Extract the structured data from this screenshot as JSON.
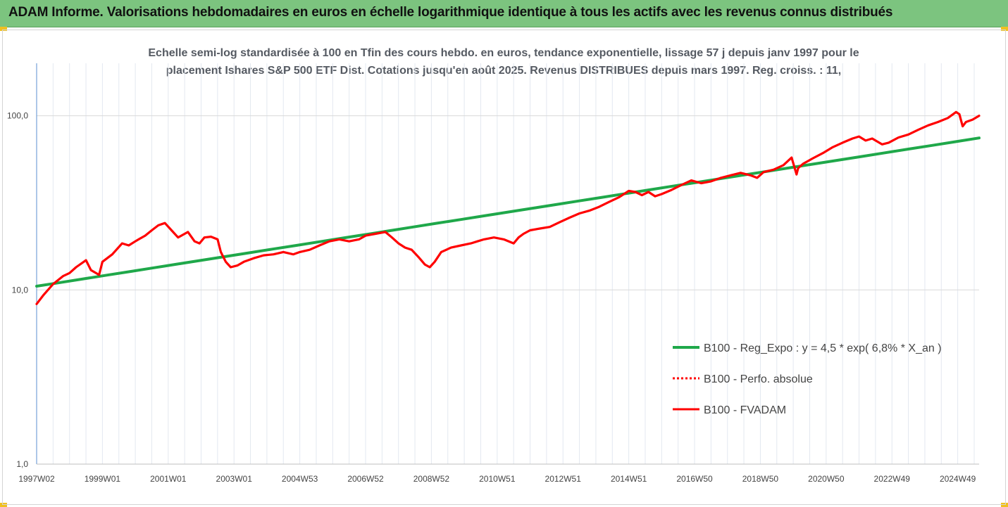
{
  "banner": {
    "title": "ADAM Informe. Valorisations hebdomadaires en euros en échelle logarithmique identique à tous les actifs avec les revenus connus distribués",
    "color": "#7cc47f"
  },
  "chart_data": {
    "type": "line",
    "title": "Echelle semi-log standardisée à 100 en Tfin des cours hebdo. en euros, tendance exponentielle, lissage 57 j depuis janv 1997 pour le placement Ishares S&P 500 ETF Dist. Cotations jusqu'en août 2025.  Revenus DISTRIBUES depuis mars 1997. Reg. croiss. : 11,",
    "title_line1": "Echelle semi-log standardisée à 100 en Tfin des cours hebdo. en euros, tendance exponentielle, lissage 57 j depuis janv 1997 pour le",
    "title_line2": "placement Ishares S&P 500 ETF Dist. Cotations jusqu'en août 2025.  Revenus DISTRIBUES depuis mars 1997. Reg. croiss. : 11,",
    "y_scale": "log",
    "ylim": [
      1,
      200
    ],
    "xlim": [
      1997.0,
      2025.65
    ],
    "y_ticks": [
      {
        "value": 1,
        "label": "1,0"
      },
      {
        "value": 10,
        "label": "10,0"
      },
      {
        "value": 100,
        "label": "100,0"
      }
    ],
    "x_ticks": [
      {
        "value": 1997.0,
        "label": "1997W02"
      },
      {
        "value": 1999.0,
        "label": "1999W01"
      },
      {
        "value": 2001.0,
        "label": "2001W01"
      },
      {
        "value": 2003.0,
        "label": "2003W01"
      },
      {
        "value": 2005.0,
        "label": "2004W53"
      },
      {
        "value": 2007.0,
        "label": "2006W52"
      },
      {
        "value": 2009.0,
        "label": "2008W52"
      },
      {
        "value": 2011.0,
        "label": "2010W51"
      },
      {
        "value": 2013.0,
        "label": "2012W51"
      },
      {
        "value": 2015.0,
        "label": "2014W51"
      },
      {
        "value": 2017.0,
        "label": "2016W50"
      },
      {
        "value": 2019.0,
        "label": "2018W50"
      },
      {
        "value": 2021.0,
        "label": "2020W50"
      },
      {
        "value": 2023.0,
        "label": "2022W49"
      },
      {
        "value": 2025.0,
        "label": "2024W49"
      }
    ],
    "x_minor_step": 0.5,
    "grid": "horizontal major, vertical minor",
    "legend_position": "bottom-right",
    "series": [
      {
        "name": "B100 - Reg_Expo : y = 4,5 * exp( 6,8% *  X_an )",
        "color": "#1fa84a",
        "style": "solid",
        "x": [
          1997.0,
          2025.65
        ],
        "y": [
          10.5,
          74.5
        ]
      },
      {
        "name": "B100 - Perfo. absolue",
        "color": "#ff0000",
        "style": "dotted",
        "x": [],
        "y": []
      },
      {
        "name": "B100 - FVADAM",
        "color": "#ff0000",
        "style": "solid",
        "x": [
          1997.0,
          1997.2,
          1997.5,
          1997.8,
          1998.0,
          1998.2,
          1998.5,
          1998.65,
          1998.9,
          1999.0,
          1999.3,
          1999.6,
          1999.8,
          2000.0,
          2000.1,
          2000.3,
          2000.5,
          2000.7,
          2000.9,
          2001.1,
          2001.3,
          2001.6,
          2001.8,
          2001.95,
          2002.1,
          2002.3,
          2002.5,
          2002.6,
          2002.75,
          2002.9,
          2003.1,
          2003.3,
          2003.6,
          2003.9,
          2004.2,
          2004.5,
          2004.8,
          2005.0,
          2005.3,
          2005.6,
          2005.9,
          2006.2,
          2006.5,
          2006.8,
          2007.0,
          2007.3,
          2007.6,
          2007.8,
          2008.0,
          2008.2,
          2008.4,
          2008.6,
          2008.8,
          2008.95,
          2009.1,
          2009.3,
          2009.6,
          2009.9,
          2010.2,
          2010.4,
          2010.6,
          2010.9,
          2011.2,
          2011.5,
          2011.65,
          2011.8,
          2012.0,
          2012.3,
          2012.6,
          2012.9,
          2013.2,
          2013.5,
          2013.8,
          2014.1,
          2014.4,
          2014.7,
          2015.0,
          2015.2,
          2015.4,
          2015.6,
          2015.8,
          2016.0,
          2016.3,
          2016.6,
          2016.9,
          2017.2,
          2017.5,
          2017.8,
          2018.1,
          2018.4,
          2018.7,
          2018.9,
          2019.1,
          2019.4,
          2019.7,
          2019.95,
          2020.1,
          2020.15,
          2020.3,
          2020.6,
          2020.9,
          2021.2,
          2021.5,
          2021.8,
          2022.0,
          2022.2,
          2022.4,
          2022.7,
          2022.9,
          2023.2,
          2023.5,
          2023.8,
          2024.1,
          2024.4,
          2024.7,
          2024.95,
          2025.05,
          2025.15,
          2025.25,
          2025.45,
          2025.65
        ],
        "y": [
          8.3,
          9.3,
          10.8,
          12.0,
          12.5,
          13.5,
          14.8,
          13.0,
          12.2,
          14.5,
          16.0,
          18.5,
          18.0,
          19.0,
          19.5,
          20.5,
          22.0,
          23.5,
          24.2,
          22.0,
          20.0,
          21.5,
          19.0,
          18.5,
          20.0,
          20.2,
          19.5,
          16.5,
          14.5,
          13.5,
          13.8,
          14.5,
          15.2,
          15.8,
          16.0,
          16.5,
          16.0,
          16.5,
          17.0,
          18.0,
          19.0,
          19.5,
          19.0,
          19.5,
          20.5,
          21.0,
          21.5,
          20.0,
          18.5,
          17.5,
          17.0,
          15.5,
          14.0,
          13.5,
          14.5,
          16.5,
          17.5,
          18.0,
          18.5,
          19.0,
          19.5,
          20.0,
          19.5,
          18.5,
          20.0,
          21.0,
          22.0,
          22.5,
          23.0,
          24.5,
          26.0,
          27.5,
          28.5,
          30.0,
          32.0,
          34.0,
          37.0,
          36.5,
          35.0,
          36.5,
          34.5,
          35.5,
          37.5,
          40.0,
          42.5,
          41.0,
          42.0,
          44.0,
          45.5,
          47.0,
          45.5,
          44.0,
          47.5,
          49.0,
          52.0,
          57.5,
          46.0,
          50.0,
          53.0,
          57.0,
          61.0,
          66.0,
          70.0,
          74.0,
          76.0,
          72.0,
          74.0,
          68.5,
          70.0,
          75.0,
          78.0,
          83.0,
          88.0,
          92.0,
          97.0,
          105.0,
          102.0,
          87.0,
          92.0,
          95.0,
          100.0
        ]
      }
    ]
  }
}
